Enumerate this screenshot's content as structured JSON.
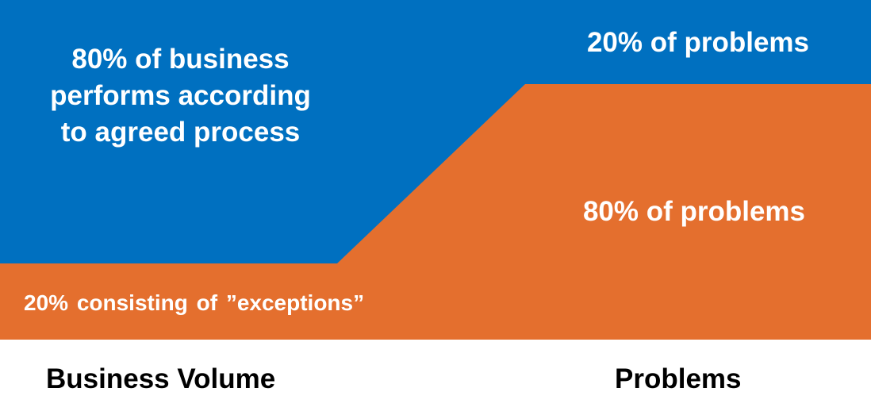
{
  "colors": {
    "majority": "#0070C0",
    "exceptions": "#E46F2E",
    "background": "#FFFFFF"
  },
  "diagram": {
    "business_main_label": [
      "80% of business",
      "performs according",
      "to agreed process"
    ],
    "problems_top_label": "20% of problems",
    "problems_main_label": "80% of problems",
    "exceptions_label": "20% consisting of  ”exceptions”"
  },
  "axis_labels": {
    "left": "Business Volume",
    "right": "Problems"
  }
}
